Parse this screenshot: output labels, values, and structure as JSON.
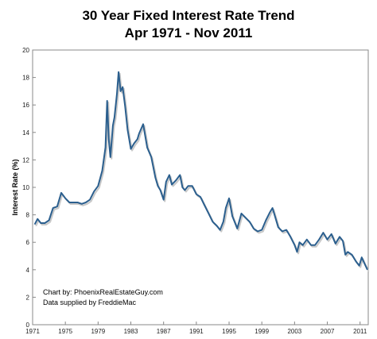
{
  "chart_data": {
    "type": "line",
    "title": "30 Year Fixed Interest Rate Trend",
    "subtitle": "Apr 1971 - Nov 2011",
    "xlabel": "",
    "ylabel": "Interest Rate (%)",
    "xlim": [
      1971,
      2012
    ],
    "ylim": [
      0,
      20
    ],
    "x_ticks": [
      "1971",
      "1975",
      "1979",
      "1983",
      "1987",
      "1991",
      "1995",
      "1999",
      "2003",
      "2007",
      "2011"
    ],
    "y_ticks": [
      "0",
      "2",
      "4",
      "6",
      "8",
      "10",
      "12",
      "14",
      "16",
      "18",
      "20"
    ],
    "grid": false,
    "line_color": "#2b5f8e",
    "series": [
      {
        "name": "",
        "x": [
          1971.25,
          1971.6,
          1972.0,
          1972.5,
          1973.0,
          1973.5,
          1974.0,
          1974.5,
          1975.0,
          1975.5,
          1976.0,
          1976.5,
          1977.0,
          1977.5,
          1978.0,
          1978.5,
          1979.0,
          1979.5,
          1979.9,
          1980.1,
          1980.3,
          1980.5,
          1980.8,
          1981.0,
          1981.3,
          1981.5,
          1981.75,
          1982.0,
          1982.3,
          1982.6,
          1983.0,
          1983.4,
          1983.8,
          1984.0,
          1984.5,
          1985.0,
          1985.5,
          1986.0,
          1986.3,
          1986.6,
          1987.0,
          1987.3,
          1987.7,
          1988.0,
          1988.5,
          1989.0,
          1989.3,
          1989.6,
          1990.0,
          1990.5,
          1991.0,
          1991.5,
          1992.0,
          1992.5,
          1993.0,
          1993.5,
          1993.9,
          1994.3,
          1994.6,
          1995.0,
          1995.4,
          1995.8,
          1996.0,
          1996.5,
          1997.0,
          1997.5,
          1998.0,
          1998.5,
          1999.0,
          1999.5,
          2000.0,
          2000.3,
          2000.6,
          2001.0,
          2001.5,
          2002.0,
          2002.5,
          2003.0,
          2003.3,
          2003.6,
          2004.0,
          2004.5,
          2005.0,
          2005.5,
          2006.0,
          2006.5,
          2007.0,
          2007.5,
          2008.0,
          2008.5,
          2008.9,
          2009.2,
          2009.5,
          2010.0,
          2010.5,
          2010.9,
          2011.2,
          2011.5,
          2011.9
        ],
        "y": [
          7.3,
          7.7,
          7.4,
          7.4,
          7.6,
          8.5,
          8.6,
          9.6,
          9.2,
          8.9,
          8.9,
          8.9,
          8.8,
          8.9,
          9.1,
          9.7,
          10.1,
          11.2,
          12.9,
          16.3,
          13.5,
          12.2,
          14.5,
          15.1,
          16.8,
          18.4,
          17.0,
          17.3,
          15.9,
          14.2,
          12.8,
          13.2,
          13.5,
          13.9,
          14.6,
          12.9,
          12.2,
          10.7,
          10.1,
          9.8,
          9.1,
          10.4,
          10.9,
          10.2,
          10.5,
          10.9,
          10.0,
          9.8,
          10.1,
          10.1,
          9.5,
          9.3,
          8.7,
          8.1,
          7.5,
          7.2,
          6.9,
          7.5,
          8.5,
          9.2,
          7.9,
          7.3,
          7.0,
          8.1,
          7.8,
          7.5,
          7.0,
          6.8,
          6.9,
          7.6,
          8.2,
          8.5,
          7.9,
          7.1,
          6.8,
          6.9,
          6.4,
          5.8,
          5.3,
          6.0,
          5.8,
          6.2,
          5.8,
          5.8,
          6.2,
          6.7,
          6.2,
          6.6,
          5.9,
          6.4,
          6.1,
          5.1,
          5.3,
          5.1,
          4.6,
          4.3,
          4.9,
          4.5,
          4.0
        ]
      }
    ]
  },
  "credits": {
    "line1": "Chart by: PhoenixRealEstateGuy.com",
    "line2": "Data supplied by FreddieMac"
  }
}
